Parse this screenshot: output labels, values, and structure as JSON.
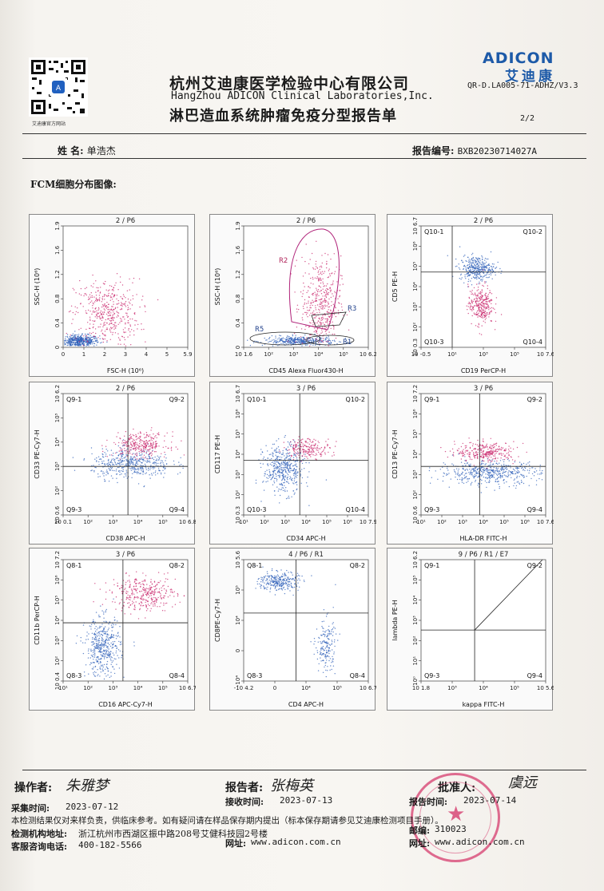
{
  "header": {
    "qr_caption": "艾迪康官方网站",
    "company_cn": "杭州艾迪康医学检验中心有限公司",
    "company_en": "HangZhou ADICON Clinical Laboratories,Inc.",
    "report_title": "淋巴造血系统肿瘤免疫分型报告单",
    "logo_en": "ADICON",
    "logo_cn": "艾迪康",
    "doc_code": "QR-D.LA005-71-ADHZ/V3.3",
    "page": "2/2"
  },
  "patient": {
    "name_label": "姓  名:",
    "name_value": "单浩杰",
    "report_no_label": "报告编号:",
    "report_no_value": "BXB20230714027A"
  },
  "section_label": "FCM细胞分布图像:",
  "plots": [
    {
      "title": "2 / P6",
      "x_label": "FSC-H (10⁶)",
      "y_label": "SSC-H (10⁶)",
      "x_ticks": [
        "0",
        "1",
        "2",
        "3",
        "4",
        "5",
        "5.9"
      ],
      "y_ticks": [
        "0",
        "0.4",
        "0.8",
        "1.2",
        "1.6",
        "1.9"
      ]
    },
    {
      "title": "2 / P6",
      "x_label": "CD45 Alexa Fluor430-H",
      "y_label": "SSC-H (10⁶)",
      "x_ticks": [
        "10 1.6",
        "10²",
        "10³",
        "10⁴",
        "10⁵",
        "10 6.2"
      ],
      "y_ticks": [
        "0",
        "0.4",
        "0.8",
        "1.2",
        "1.6",
        "1.9"
      ],
      "regions": [
        "R2",
        "R3",
        "R5",
        "R1"
      ]
    },
    {
      "title": "2 / P6",
      "x_label": "CD19 PerCP-H",
      "y_label": "CD5 PE-H",
      "x_ticks": [
        "10 -0.5",
        "10¹",
        "10³",
        "10⁵",
        "10 7.6"
      ],
      "y_ticks": [
        "10 0.3",
        "10²",
        "10³",
        "10⁴",
        "10⁵",
        "10⁶",
        "10 6.7"
      ],
      "quadrants": [
        "Q10-1",
        "Q10-2",
        "Q10-3",
        "Q10-4"
      ]
    },
    {
      "title": "2 / P6",
      "x_label": "CD38  APC-H",
      "y_label": "CD33 PE-Cy7-H",
      "x_ticks": [
        "10 0.1",
        "10²",
        "10³",
        "10⁴",
        "10⁵",
        "10 6.8"
      ],
      "y_ticks": [
        "10 0.6",
        "10²",
        "10³",
        "10⁴",
        "10⁵",
        "10 6.2"
      ],
      "quadrants": [
        "Q9-1",
        "Q9-2",
        "Q9-3",
        "Q9-4"
      ]
    },
    {
      "title": "3 / P6",
      "x_label": "CD34  APC-H",
      "y_label": "CD117 PE-H",
      "x_ticks": [
        "10¹",
        "10²",
        "10³",
        "10⁴",
        "10⁵",
        "10⁶",
        "10 7.9"
      ],
      "y_ticks": [
        "10 0.3",
        "10²",
        "10³",
        "10⁴",
        "10⁵",
        "10⁶",
        "10 6.7"
      ],
      "quadrants": [
        "Q10-1",
        "Q10-2",
        "Q10-3",
        "Q10-4"
      ]
    },
    {
      "title": "3 / P6",
      "x_label": "HLA-DR FITC-H",
      "y_label": "CD13 PE-Cy7-H",
      "x_ticks": [
        "10¹",
        "10²",
        "10³",
        "10⁴",
        "10⁵",
        "10⁶",
        "10 7.6"
      ],
      "y_ticks": [
        "10 0.6",
        "10²",
        "10³",
        "10⁴",
        "10⁵",
        "10⁶",
        "10 7.2"
      ],
      "quadrants": [
        "Q9-1",
        "Q9-2",
        "Q9-3",
        "Q9-4"
      ]
    },
    {
      "title": "3 / P6",
      "x_label": "CD16 APC-Cy7-H",
      "y_label": "CD11b PerCP-H",
      "x_ticks": [
        "10¹",
        "10²",
        "10³",
        "10⁴",
        "10⁵",
        "10 6.7"
      ],
      "y_ticks": [
        "10 0.4",
        "10²",
        "10³",
        "10⁴",
        "10⁵",
        "10⁶",
        "10 7.2"
      ],
      "quadrants": [
        "Q8-1",
        "Q8-2",
        "Q8-3",
        "Q8-4"
      ]
    },
    {
      "title": "4 / P6 / R1",
      "x_label": "CD4 APC-H",
      "y_label": "CD8PE-Cy7-H",
      "x_ticks": [
        "-10 4.2",
        "0",
        "10⁴",
        "10⁵",
        "10 6.7"
      ],
      "y_ticks": [
        "-10⁴",
        "0",
        "10⁴",
        "10⁵",
        "10 5.6"
      ],
      "quadrants": [
        "Q8-1",
        "Q8-2",
        "Q8-3",
        "Q8-4"
      ]
    },
    {
      "title": "9 / P6 / R1 / E7",
      "x_label": "kappa FITC-H",
      "y_label": "lambda PE-H",
      "x_ticks": [
        "10 1.8",
        "10³",
        "10⁴",
        "10⁵",
        "10 5.6"
      ],
      "y_ticks": [
        "10⁰",
        "10¹",
        "10²",
        "10³",
        "10⁴",
        "10⁵",
        "10 6.2"
      ],
      "quadrants": [
        "Q9-1",
        "Q9-2",
        "Q9-3",
        "Q9-4"
      ]
    }
  ],
  "footer": {
    "operator_label": "操作者:",
    "operator_sig": "朱雅梦",
    "reporter_label": "报告者:",
    "reporter_sig": "张梅英",
    "approver_label": "批准人:",
    "approver_sig": "虞远",
    "collect_label": "采集时间:",
    "collect_value": "2023-07-12",
    "receive_label": "接收时间:",
    "receive_value": "2023-07-13",
    "report_time_label": "报告时间:",
    "report_time_value": "2023-07-14",
    "disclaimer": "本检测结果仅对来样负责，供临床参考。如有疑问请在样品保存期内提出（标本保存期请参见艾迪康检测项目手册）。",
    "org_label": "检测机构地址:",
    "org_value": "浙江杭州市西湖区振中路208号艾健科技园2号楼",
    "postcode_label": "邮编:",
    "postcode_value": "310023",
    "hotline_label": "客服咨询电话:",
    "hotline_value": "400-182-5566",
    "web_label": "网址:",
    "web_value": "www.adicon.com.cn",
    "web_label_2": "网址:",
    "web_value_2": "www.adicon.com.cn"
  },
  "colors": {
    "pink": "#c8236a",
    "blue": "#2d5fb8",
    "brand": "#1d5aa8",
    "stamp": "#d63c6e"
  }
}
